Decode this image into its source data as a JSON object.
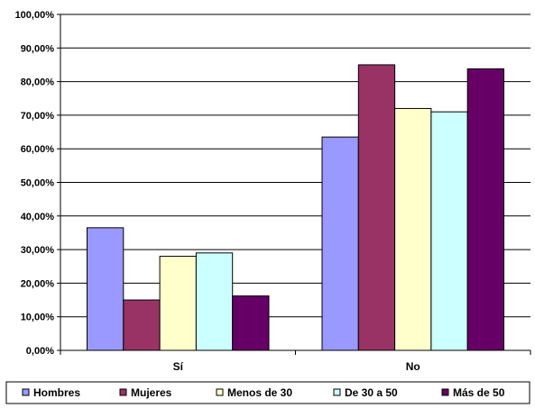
{
  "chart_data": {
    "type": "bar",
    "categories": [
      "Sí",
      "No"
    ],
    "y_ticks": [
      "0,00%",
      "10,00%",
      "20,00%",
      "30,00%",
      "40,00%",
      "50,00%",
      "60,00%",
      "70,00%",
      "80,00%",
      "90,00%",
      "100,00%"
    ],
    "ylim": [
      0,
      100
    ],
    "grid": true,
    "legend_position": "bottom",
    "series": [
      {
        "name": "Hombres",
        "color": "#9999ff",
        "values": [
          36.5,
          63.5
        ]
      },
      {
        "name": "Mujeres",
        "color": "#993366",
        "values": [
          15,
          85
        ]
      },
      {
        "name": "Menos de 30",
        "color": "#ffffcc",
        "values": [
          28,
          72
        ]
      },
      {
        "name": "De 30 a 50",
        "color": "#ccffff",
        "values": [
          29,
          71
        ]
      },
      {
        "name": "Más de 50",
        "color": "#660066",
        "values": [
          16.2,
          83.8
        ]
      }
    ]
  }
}
